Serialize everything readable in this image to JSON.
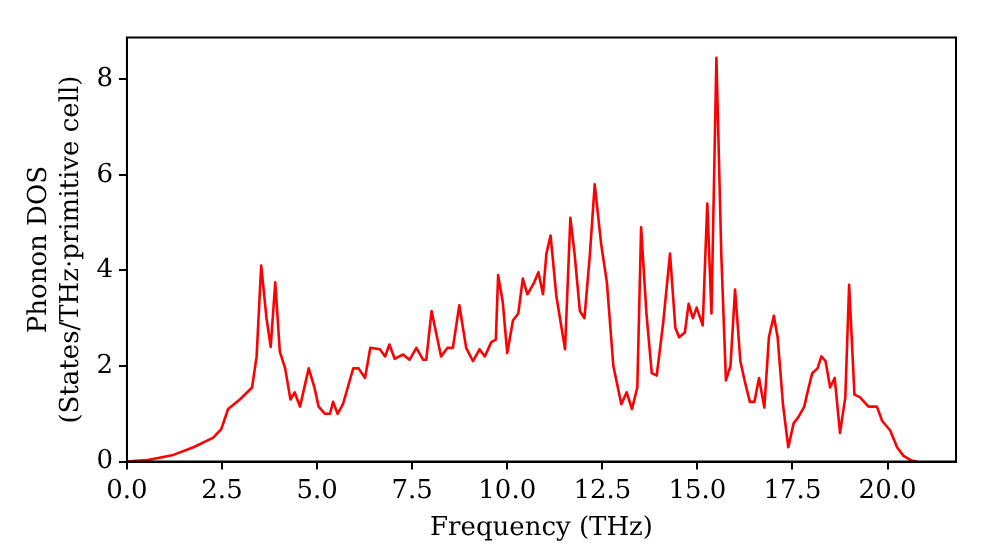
{
  "chart_data": {
    "type": "line",
    "xlabel": "Frequency (THz)",
    "ylabel": "Phonon DOS\n(States/THz·primitive cell)",
    "xlim": [
      0,
      21.8
    ],
    "ylim": [
      0,
      8.87
    ],
    "xticks": [
      {
        "value": 0,
        "label": "0.0"
      },
      2.5,
      {
        "value": 5,
        "label": "5.0"
      },
      7.5,
      {
        "value": 10,
        "label": "10.0"
      },
      12.5,
      {
        "value": 15,
        "label": "15.0"
      },
      17.5,
      {
        "value": 20,
        "label": "20.0"
      }
    ],
    "yticks": [
      0,
      2,
      4,
      6,
      8
    ],
    "grid": false,
    "legend": false,
    "marker": "none",
    "line_style": "solid",
    "series": [
      {
        "color": "#ff0000",
        "x": [
          0,
          0.52,
          1.22,
          1.75,
          2.27,
          2.48,
          2.66,
          2.97,
          3.29,
          3.41,
          3.53,
          3.67,
          3.78,
          3.9,
          4.02,
          4.16,
          4.3,
          4.41,
          4.55,
          4.78,
          4.93,
          5.04,
          5.21,
          5.34,
          5.42,
          5.54,
          5.68,
          5.95,
          6.09,
          6.26,
          6.4,
          6.65,
          6.79,
          6.9,
          7.04,
          7.26,
          7.43,
          7.61,
          7.79,
          7.87,
          8.01,
          8.26,
          8.43,
          8.57,
          8.74,
          8.92,
          9.1,
          9.27,
          9.41,
          9.58,
          9.7,
          9.76,
          9.88,
          10.0,
          10.15,
          10.29,
          10.41,
          10.53,
          10.71,
          10.82,
          10.94,
          11.03,
          11.14,
          11.29,
          11.52,
          11.66,
          11.77,
          11.91,
          12.03,
          12.17,
          12.3,
          12.47,
          12.62,
          12.79,
          13.0,
          13.14,
          13.28,
          13.42,
          13.52,
          13.66,
          13.8,
          13.93,
          14.1,
          14.28,
          14.42,
          14.52,
          14.67,
          14.77,
          14.88,
          14.98,
          15.14,
          15.26,
          15.37,
          15.5,
          15.63,
          15.75,
          15.87,
          15.99,
          16.13,
          16.24,
          16.38,
          16.5,
          16.62,
          16.76,
          16.88,
          17.01,
          17.11,
          17.25,
          17.39,
          17.53,
          17.67,
          17.81,
          17.91,
          18.02,
          18.16,
          18.26,
          18.37,
          18.49,
          18.61,
          18.75,
          18.89,
          18.99,
          19.13,
          19.27,
          19.5,
          19.72,
          19.86,
          20.07,
          20.25,
          20.42,
          20.63,
          20.77
        ],
        "values": [
          0,
          0.03,
          0.14,
          0.3,
          0.5,
          0.68,
          1.1,
          1.3,
          1.55,
          2.2,
          4.1,
          3.0,
          2.4,
          3.75,
          2.3,
          1.95,
          1.3,
          1.45,
          1.15,
          1.95,
          1.55,
          1.15,
          1.0,
          1.0,
          1.25,
          1.0,
          1.2,
          1.95,
          1.95,
          1.75,
          2.38,
          2.35,
          2.2,
          2.45,
          2.15,
          2.24,
          2.13,
          2.38,
          2.13,
          2.13,
          3.15,
          2.2,
          2.38,
          2.38,
          3.27,
          2.38,
          2.1,
          2.35,
          2.2,
          2.5,
          2.55,
          3.9,
          3.35,
          2.27,
          2.95,
          3.1,
          3.83,
          3.5,
          3.75,
          3.96,
          3.5,
          4.35,
          4.73,
          3.47,
          2.35,
          5.1,
          4.35,
          3.15,
          3.0,
          4.3,
          5.8,
          4.55,
          3.75,
          2.0,
          1.2,
          1.45,
          1.1,
          1.55,
          4.9,
          3.1,
          1.85,
          1.8,
          2.9,
          4.35,
          2.8,
          2.6,
          2.7,
          3.3,
          3.0,
          3.22,
          2.85,
          5.4,
          3.1,
          8.45,
          4.3,
          1.7,
          2.0,
          3.6,
          2.1,
          1.7,
          1.25,
          1.25,
          1.75,
          1.13,
          2.6,
          3.05,
          2.6,
          1.2,
          0.3,
          0.8,
          0.95,
          1.15,
          1.5,
          1.85,
          1.95,
          2.2,
          2.1,
          1.55,
          1.75,
          0.6,
          1.35,
          3.7,
          1.4,
          1.35,
          1.15,
          1.15,
          0.85,
          0.65,
          0.3,
          0.12,
          0.02,
          0
        ]
      }
    ]
  }
}
